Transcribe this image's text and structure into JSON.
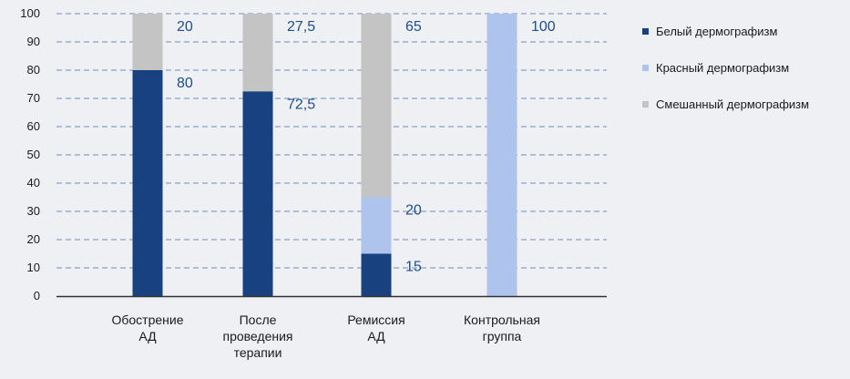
{
  "chart_data": {
    "type": "bar",
    "stacked": true,
    "categories": [
      [
        "Обострение",
        "АД"
      ],
      [
        "После",
        "проведения",
        "терапии"
      ],
      [
        "Ремиссия",
        "АД"
      ],
      [
        "Контрольная",
        "группа"
      ]
    ],
    "series": [
      {
        "name": "Белый дермографизм",
        "color": "#17427f",
        "values": [
          80,
          72.5,
          15,
          0
        ]
      },
      {
        "name": "Красный дермографизм",
        "color": "#afc4ec",
        "values": [
          0,
          0,
          20,
          100
        ]
      },
      {
        "name": "Смешанный дермографизм",
        "color": "#c4c4c4",
        "values": [
          20,
          27.5,
          65,
          0
        ]
      }
    ],
    "data_labels": [
      [
        {
          "text": "80",
          "series": 0
        },
        {
          "text": "20",
          "series": 2
        }
      ],
      [
        {
          "text": "72,5",
          "series": 0
        },
        {
          "text": "27,5",
          "series": 2
        }
      ],
      [
        {
          "text": "15",
          "series": 0
        },
        {
          "text": "20",
          "series": 1
        },
        {
          "text": "65",
          "series": 2
        }
      ],
      [
        {
          "text": "100",
          "series": 1
        }
      ]
    ],
    "yticks": [
      0,
      10,
      20,
      30,
      40,
      50,
      60,
      70,
      80,
      90,
      100
    ],
    "ylim": [
      0,
      100
    ],
    "title": "",
    "xlabel": "",
    "ylabel": "",
    "grid": "dashed horizontal",
    "legend_position": "right"
  }
}
